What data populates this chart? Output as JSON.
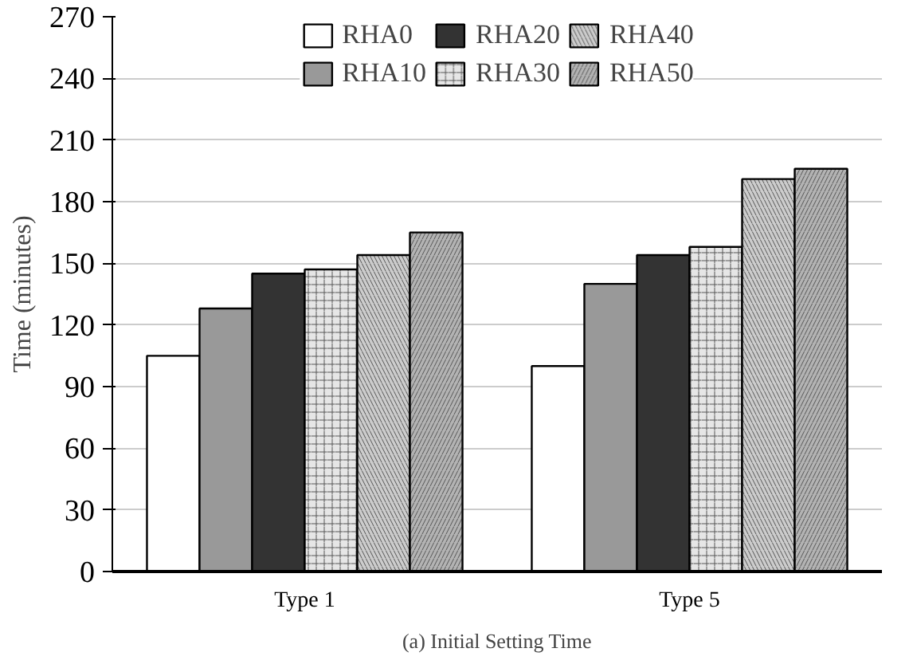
{
  "chart_data": {
    "type": "bar",
    "title": "(a) Initial Setting Time",
    "ylabel": "Time (minutes)",
    "categories": [
      "Type 1",
      "Type 5"
    ],
    "series": [
      {
        "name": "RHA0",
        "color": "#ffffff",
        "values": [
          105,
          100
        ]
      },
      {
        "name": "RHA10",
        "color": "#999999",
        "values": [
          128,
          140
        ]
      },
      {
        "name": "RHA20",
        "color": "#333333",
        "values": [
          145,
          154
        ]
      },
      {
        "name": "RHA30",
        "color": "#e6e6e6",
        "values": [
          147,
          158
        ]
      },
      {
        "name": "RHA40",
        "color": "#cccccc",
        "values": [
          154,
          191
        ]
      },
      {
        "name": "RHA50",
        "color": "#b3b3b3",
        "values": [
          165,
          196
        ]
      }
    ],
    "ylim": [
      0,
      270
    ],
    "yticks": [
      0,
      30,
      60,
      90,
      120,
      150,
      180,
      210,
      240,
      270
    ],
    "grid": "y",
    "legend": "top"
  }
}
